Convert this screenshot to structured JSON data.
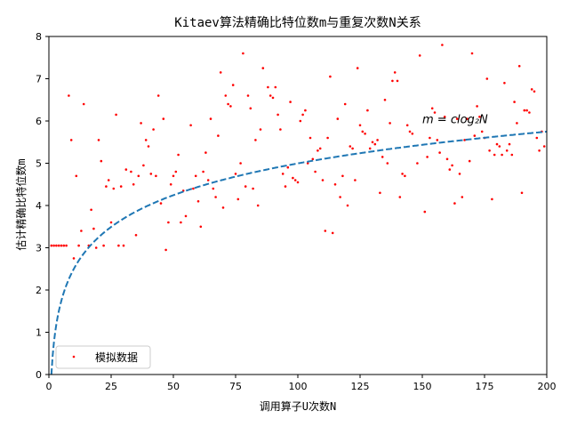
{
  "chart_data": {
    "type": "scatter",
    "title": "Kitaev算法精确比特位数m与重复次数N关系",
    "xlabel": "调用算子U次数N",
    "ylabel": "估计精确比特位数m",
    "xlim": [
      0,
      200
    ],
    "ylim": [
      0,
      8
    ],
    "xticks": [
      "0",
      "25",
      "50",
      "75",
      "100",
      "125",
      "150",
      "175",
      "200"
    ],
    "yticks": [
      "0",
      "1",
      "2",
      "3",
      "4",
      "5",
      "6",
      "7",
      "8"
    ],
    "grid": false,
    "legend_position": "lower-left",
    "annotation": {
      "text": "m = clog₂N",
      "x": 150,
      "y": 6.05
    },
    "colors": {
      "scatter": "#ff0000",
      "fit": "#1f77b4"
    },
    "series": [
      {
        "name": "模拟数据",
        "kind": "scatter",
        "points": [
          [
            1,
            3.05
          ],
          [
            2,
            3.05
          ],
          [
            3,
            3.05
          ],
          [
            4,
            3.05
          ],
          [
            5,
            3.05
          ],
          [
            6,
            3.05
          ],
          [
            7,
            3.05
          ],
          [
            8,
            6.6
          ],
          [
            9,
            5.55
          ],
          [
            10,
            2.75
          ],
          [
            11,
            4.7
          ],
          [
            12,
            3.05
          ],
          [
            13,
            3.4
          ],
          [
            14,
            6.4
          ],
          [
            16,
            3.05
          ],
          [
            17,
            3.9
          ],
          [
            18,
            3.45
          ],
          [
            19,
            3.0
          ],
          [
            20,
            5.55
          ],
          [
            21,
            5.05
          ],
          [
            22,
            3.05
          ],
          [
            23,
            4.45
          ],
          [
            24,
            4.6
          ],
          [
            25,
            3.6
          ],
          [
            26,
            4.4
          ],
          [
            27,
            6.15
          ],
          [
            28,
            3.05
          ],
          [
            29,
            4.45
          ],
          [
            30,
            3.05
          ],
          [
            31,
            4.85
          ],
          [
            33,
            4.8
          ],
          [
            34,
            4.5
          ],
          [
            35,
            3.3
          ],
          [
            36,
            4.7
          ],
          [
            37,
            5.95
          ],
          [
            38,
            4.95
          ],
          [
            39,
            5.55
          ],
          [
            40,
            5.4
          ],
          [
            41,
            4.75
          ],
          [
            42,
            5.8
          ],
          [
            43,
            4.7
          ],
          [
            44,
            6.6
          ],
          [
            45,
            4.05
          ],
          [
            46,
            6.05
          ],
          [
            47,
            2.95
          ],
          [
            48,
            3.6
          ],
          [
            49,
            4.5
          ],
          [
            50,
            4.7
          ],
          [
            51,
            4.8
          ],
          [
            52,
            5.2
          ],
          [
            53,
            3.6
          ],
          [
            54,
            4.35
          ],
          [
            55,
            3.75
          ],
          [
            57,
            5.9
          ],
          [
            58,
            4.4
          ],
          [
            59,
            4.7
          ],
          [
            60,
            4.1
          ],
          [
            61,
            3.5
          ],
          [
            62,
            4.8
          ],
          [
            63,
            5.25
          ],
          [
            64,
            4.6
          ],
          [
            65,
            6.05
          ],
          [
            66,
            4.4
          ],
          [
            67,
            4.2
          ],
          [
            68,
            5.65
          ],
          [
            69,
            7.15
          ],
          [
            70,
            3.95
          ],
          [
            71,
            6.6
          ],
          [
            72,
            6.4
          ],
          [
            73,
            6.35
          ],
          [
            74,
            6.85
          ],
          [
            75,
            4.75
          ],
          [
            76,
            4.15
          ],
          [
            77,
            5.0
          ],
          [
            78,
            7.6
          ],
          [
            79,
            4.45
          ],
          [
            80,
            6.6
          ],
          [
            81,
            6.3
          ],
          [
            82,
            4.4
          ],
          [
            83,
            5.55
          ],
          [
            84,
            4.0
          ],
          [
            85,
            5.8
          ],
          [
            86,
            7.25
          ],
          [
            88,
            6.8
          ],
          [
            89,
            6.6
          ],
          [
            90,
            6.55
          ],
          [
            91,
            6.8
          ],
          [
            92,
            6.15
          ],
          [
            93,
            5.8
          ],
          [
            94,
            4.75
          ],
          [
            95,
            4.45
          ],
          [
            96,
            4.9
          ],
          [
            97,
            6.45
          ],
          [
            98,
            4.65
          ],
          [
            99,
            4.6
          ],
          [
            100,
            4.55
          ],
          [
            101,
            6.0
          ],
          [
            102,
            6.15
          ],
          [
            103,
            6.25
          ],
          [
            104,
            5.0
          ],
          [
            105,
            5.6
          ],
          [
            106,
            5.1
          ],
          [
            107,
            4.8
          ],
          [
            108,
            5.3
          ],
          [
            109,
            5.35
          ],
          [
            110,
            4.6
          ],
          [
            111,
            3.4
          ],
          [
            112,
            5.6
          ],
          [
            113,
            7.05
          ],
          [
            114,
            3.35
          ],
          [
            115,
            4.5
          ],
          [
            116,
            6.05
          ],
          [
            117,
            4.2
          ],
          [
            118,
            4.7
          ],
          [
            119,
            6.4
          ],
          [
            120,
            4.0
          ],
          [
            121,
            5.4
          ],
          [
            122,
            5.35
          ],
          [
            123,
            4.6
          ],
          [
            124,
            7.25
          ],
          [
            125,
            5.9
          ],
          [
            126,
            5.75
          ],
          [
            127,
            5.7
          ],
          [
            128,
            6.25
          ],
          [
            129,
            5.35
          ],
          [
            130,
            5.5
          ],
          [
            131,
            5.45
          ],
          [
            132,
            5.55
          ],
          [
            133,
            4.3
          ],
          [
            134,
            5.15
          ],
          [
            135,
            6.5
          ],
          [
            136,
            5.0
          ],
          [
            137,
            5.95
          ],
          [
            138,
            6.95
          ],
          [
            139,
            7.15
          ],
          [
            140,
            6.95
          ],
          [
            141,
            4.2
          ],
          [
            142,
            4.75
          ],
          [
            143,
            4.7
          ],
          [
            144,
            5.9
          ],
          [
            145,
            5.75
          ],
          [
            146,
            5.7
          ],
          [
            148,
            5.0
          ],
          [
            149,
            7.55
          ],
          [
            151,
            3.85
          ],
          [
            152,
            5.15
          ],
          [
            153,
            5.6
          ],
          [
            154,
            6.3
          ],
          [
            155,
            6.2
          ],
          [
            156,
            5.55
          ],
          [
            157,
            5.25
          ],
          [
            158,
            7.8
          ],
          [
            159,
            6.1
          ],
          [
            160,
            5.1
          ],
          [
            161,
            4.85
          ],
          [
            162,
            4.95
          ],
          [
            163,
            4.05
          ],
          [
            164,
            6.05
          ],
          [
            165,
            4.75
          ],
          [
            166,
            4.2
          ],
          [
            167,
            5.55
          ],
          [
            168,
            6.05
          ],
          [
            169,
            5.05
          ],
          [
            170,
            7.6
          ],
          [
            171,
            5.65
          ],
          [
            172,
            6.35
          ],
          [
            173,
            6.1
          ],
          [
            174,
            5.75
          ],
          [
            175,
            5.6
          ],
          [
            176,
            7.0
          ],
          [
            177,
            5.3
          ],
          [
            178,
            4.15
          ],
          [
            179,
            5.2
          ],
          [
            180,
            5.45
          ],
          [
            181,
            5.4
          ],
          [
            182,
            5.2
          ],
          [
            183,
            6.9
          ],
          [
            184,
            5.3
          ],
          [
            185,
            5.45
          ],
          [
            186,
            5.2
          ],
          [
            187,
            6.45
          ],
          [
            188,
            5.95
          ],
          [
            189,
            7.3
          ],
          [
            190,
            4.3
          ],
          [
            191,
            6.25
          ],
          [
            192,
            6.25
          ],
          [
            193,
            6.2
          ],
          [
            194,
            6.75
          ],
          [
            195,
            6.7
          ],
          [
            196,
            5.6
          ],
          [
            197,
            5.3
          ],
          [
            198,
            5.75
          ],
          [
            199,
            5.4
          ]
        ]
      },
      {
        "kind": "line",
        "function": "c*log2(N)",
        "c": 0.752,
        "x_range": [
          1,
          200
        ]
      }
    ]
  }
}
